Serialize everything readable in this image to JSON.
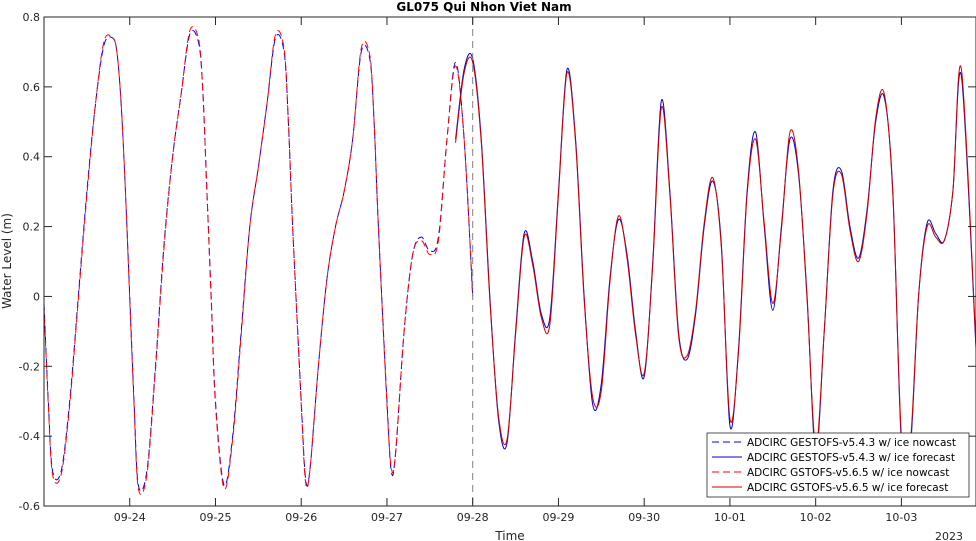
{
  "chart_data": {
    "type": "line",
    "title": "GL075 Qui Nhon Viet Nam",
    "xlabel": "Time",
    "ylabel": "Water Level (m)",
    "x_unit": "days since 2023-09-23 00:00",
    "xlim": [
      0.0,
      10.87
    ],
    "ylim": [
      -0.6,
      0.8
    ],
    "yticks": [
      -0.6,
      -0.4,
      -0.2,
      0,
      0.2,
      0.4,
      0.6,
      0.8
    ],
    "ytick_labels": [
      "-0.6",
      "-0.4",
      "-0.2",
      "0",
      "0.2",
      "0.4",
      "0.6",
      "0.8"
    ],
    "xticks": [
      1,
      2,
      3,
      4,
      5,
      6,
      7,
      8,
      9,
      10
    ],
    "xtick_labels": [
      "09-24",
      "09-25",
      "09-26",
      "09-27",
      "09-28",
      "09-29",
      "09-30",
      "10-01",
      "10-02",
      "10-03"
    ],
    "year_label": "2023",
    "nowcast_end": 5.0,
    "legend_position": "bottom-right",
    "grid": false,
    "series": [
      {
        "name": "ADCIRC GESTOFS-v5.4.3 w/ ice nowcast",
        "color": "#0000ff",
        "dash": "dashed",
        "x": [
          0.0,
          0.05,
          0.1,
          0.2,
          0.3,
          0.4,
          0.5,
          0.6,
          0.7,
          0.8,
          0.85,
          0.9,
          0.95,
          1.0,
          1.05,
          1.1,
          1.2,
          1.3,
          1.4,
          1.5,
          1.6,
          1.7,
          1.8,
          1.85,
          1.9,
          1.95,
          2.0,
          2.1,
          2.2,
          2.3,
          2.4,
          2.5,
          2.6,
          2.7,
          2.8,
          2.85,
          2.9,
          3.0,
          3.05,
          3.1,
          3.2,
          3.3,
          3.4,
          3.5,
          3.6,
          3.7,
          3.8,
          3.85,
          3.9,
          4.0,
          4.05,
          4.1,
          4.2,
          4.3,
          4.4,
          4.5,
          4.6,
          4.7,
          4.8,
          4.9,
          5.0
        ],
        "y": [
          -0.02,
          -0.3,
          -0.5,
          -0.5,
          -0.3,
          0.0,
          0.3,
          0.55,
          0.72,
          0.74,
          0.7,
          0.55,
          0.3,
          0.0,
          -0.3,
          -0.54,
          -0.5,
          -0.2,
          0.15,
          0.4,
          0.58,
          0.75,
          0.73,
          0.6,
          0.3,
          0.0,
          -0.3,
          -0.54,
          -0.4,
          -0.1,
          0.2,
          0.37,
          0.55,
          0.74,
          0.7,
          0.5,
          0.2,
          -0.3,
          -0.52,
          -0.5,
          -0.2,
          0.05,
          0.2,
          0.3,
          0.45,
          0.7,
          0.68,
          0.5,
          0.2,
          -0.3,
          -0.5,
          -0.45,
          -0.1,
          0.12,
          0.17,
          0.13,
          0.17,
          0.45,
          0.67,
          0.45,
          0.0
        ]
      },
      {
        "name": "ADCIRC GESTOFS-v5.4.3 w/ ice forecast",
        "color": "#0000cc",
        "dash": "solid",
        "x": [
          4.8,
          4.9,
          5.0,
          5.1,
          5.2,
          5.3,
          5.4,
          5.5,
          5.6,
          5.7,
          5.8,
          5.9,
          6.0,
          6.1,
          6.2,
          6.3,
          6.4,
          6.5,
          6.6,
          6.7,
          6.8,
          6.9,
          7.0,
          7.1,
          7.2,
          7.3,
          7.4,
          7.5,
          7.6,
          7.7,
          7.8,
          7.9,
          8.0,
          8.1,
          8.2,
          8.3,
          8.4,
          8.5,
          8.6,
          8.7,
          8.8,
          8.9,
          9.0,
          9.1,
          9.2,
          9.3,
          9.4,
          9.5,
          9.6,
          9.7,
          9.8,
          9.9,
          10.0,
          10.1,
          10.2,
          10.3,
          10.4,
          10.5,
          10.6,
          10.7,
          10.87
        ],
        "y": [
          0.45,
          0.65,
          0.68,
          0.45,
          0.0,
          -0.35,
          -0.42,
          -0.1,
          0.18,
          0.1,
          -0.05,
          -0.06,
          0.3,
          0.65,
          0.45,
          0.0,
          -0.31,
          -0.25,
          0.05,
          0.22,
          0.12,
          -0.1,
          -0.23,
          0.1,
          0.56,
          0.3,
          -0.1,
          -0.18,
          -0.05,
          0.2,
          0.33,
          0.15,
          -0.37,
          -0.15,
          0.3,
          0.47,
          0.2,
          -0.04,
          0.2,
          0.45,
          0.35,
          0.0,
          -0.45,
          -0.1,
          0.3,
          0.36,
          0.2,
          0.11,
          0.25,
          0.5,
          0.57,
          0.3,
          -0.42,
          -0.45,
          0.0,
          0.21,
          0.18,
          0.16,
          0.3,
          0.63,
          -0.15
        ]
      },
      {
        "name": "ADCIRC GSTOFS-v5.6.5 w/ ice nowcast",
        "color": "#ff0000",
        "dash": "dashed",
        "x": [
          0.0,
          0.05,
          0.1,
          0.2,
          0.3,
          0.4,
          0.5,
          0.6,
          0.7,
          0.8,
          0.85,
          0.9,
          0.95,
          1.0,
          1.05,
          1.1,
          1.2,
          1.3,
          1.4,
          1.5,
          1.6,
          1.7,
          1.8,
          1.85,
          1.9,
          1.95,
          2.0,
          2.1,
          2.2,
          2.3,
          2.4,
          2.5,
          2.6,
          2.7,
          2.8,
          2.85,
          2.9,
          3.0,
          3.05,
          3.1,
          3.2,
          3.3,
          3.4,
          3.5,
          3.6,
          3.7,
          3.8,
          3.85,
          3.9,
          4.0,
          4.05,
          4.1,
          4.2,
          4.3,
          4.4,
          4.5,
          4.6,
          4.7,
          4.8,
          4.9,
          5.0
        ],
        "y": [
          -0.03,
          -0.31,
          -0.51,
          -0.51,
          -0.31,
          -0.01,
          0.29,
          0.55,
          0.73,
          0.74,
          0.7,
          0.55,
          0.3,
          -0.01,
          -0.31,
          -0.55,
          -0.51,
          -0.21,
          0.14,
          0.4,
          0.58,
          0.76,
          0.74,
          0.6,
          0.3,
          -0.01,
          -0.31,
          -0.55,
          -0.41,
          -0.11,
          0.2,
          0.37,
          0.55,
          0.75,
          0.71,
          0.5,
          0.2,
          -0.31,
          -0.53,
          -0.5,
          -0.2,
          0.05,
          0.2,
          0.3,
          0.45,
          0.71,
          0.69,
          0.5,
          0.2,
          -0.31,
          -0.49,
          -0.45,
          -0.1,
          0.12,
          0.16,
          0.12,
          0.16,
          0.45,
          0.66,
          0.45,
          0.0
        ]
      },
      {
        "name": "ADCIRC GSTOFS-v5.6.5 w/ ice forecast",
        "color": "#cc0000",
        "dash": "solid",
        "x": [
          4.8,
          4.9,
          5.0,
          5.1,
          5.2,
          5.3,
          5.4,
          5.5,
          5.6,
          5.7,
          5.8,
          5.9,
          6.0,
          6.1,
          6.2,
          6.3,
          6.4,
          6.5,
          6.6,
          6.7,
          6.8,
          6.9,
          7.0,
          7.1,
          7.2,
          7.3,
          7.4,
          7.5,
          7.6,
          7.7,
          7.8,
          7.9,
          8.0,
          8.1,
          8.2,
          8.3,
          8.4,
          8.5,
          8.6,
          8.7,
          8.8,
          8.9,
          9.0,
          9.1,
          9.2,
          9.3,
          9.4,
          9.5,
          9.6,
          9.7,
          9.8,
          9.9,
          10.0,
          10.1,
          10.2,
          10.3,
          10.4,
          10.5,
          10.6,
          10.7,
          10.87
        ],
        "y": [
          0.44,
          0.64,
          0.67,
          0.44,
          -0.01,
          -0.34,
          -0.41,
          -0.11,
          0.17,
          0.09,
          -0.06,
          -0.08,
          0.29,
          0.64,
          0.44,
          -0.01,
          -0.29,
          -0.27,
          0.04,
          0.23,
          0.11,
          -0.11,
          -0.22,
          0.09,
          0.54,
          0.29,
          -0.11,
          -0.17,
          -0.04,
          0.21,
          0.34,
          0.14,
          -0.35,
          -0.16,
          0.29,
          0.45,
          0.21,
          -0.02,
          0.19,
          0.47,
          0.36,
          -0.01,
          -0.43,
          -0.1,
          0.29,
          0.35,
          0.19,
          0.1,
          0.24,
          0.51,
          0.58,
          0.29,
          -0.4,
          -0.43,
          0.0,
          0.2,
          0.17,
          0.16,
          0.3,
          0.65,
          -0.14
        ]
      }
    ]
  }
}
